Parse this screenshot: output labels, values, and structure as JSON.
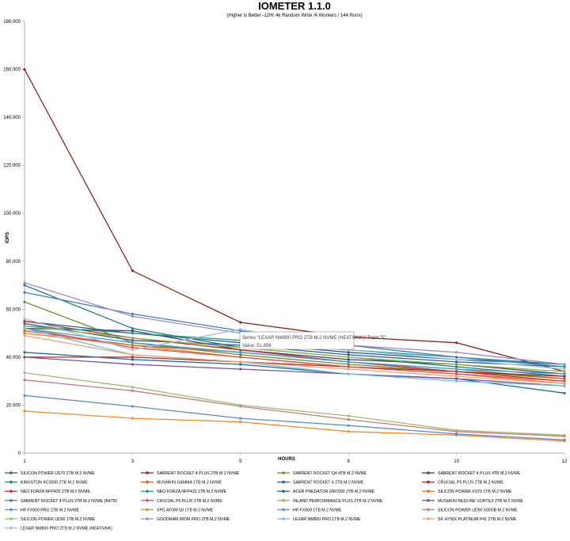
{
  "chart_data": {
    "type": "line",
    "title": "IOMETER 1.1.0",
    "subtitle": "(Higher is Better -12Hr 4k Random Write /4 Workers / 144 Runs)",
    "xlabel": "HOURS",
    "ylabel": "IOPS",
    "x": [
      "1",
      "3",
      "5",
      "8",
      "10",
      "12"
    ],
    "ylim": [
      0,
      180000
    ],
    "yticks": [
      "0",
      "20.000",
      "40.000",
      "60.000",
      "80.000",
      "100.000",
      "120.000",
      "140.000",
      "160.000",
      "180.000"
    ],
    "grid": false,
    "legend_position": "bottom",
    "tooltip": {
      "line1": "Series \"LEXAR NM800 PRO 2TB M.2 NVME (HEATSINK)\" Point \"5\"",
      "line2": "Value: 51.656"
    },
    "series": [
      {
        "name": "SILICON POWER US70 2TB M.2 NVME",
        "color": "#2e5e8e",
        "values": [
          55000,
          50000,
          46000,
          42000,
          39000,
          37000
        ]
      },
      {
        "name": "SABRENT ROCKET 4 PLUS 2TB M.2 NVME",
        "color": "#8b2525",
        "values": [
          160000,
          76000,
          54500,
          48500,
          46000,
          34000
        ]
      },
      {
        "name": "SABRENT ROCKET Q4 4TB M.2 NVME",
        "color": "#6e8a2e",
        "values": [
          63000,
          46000,
          41000,
          37000,
          34000,
          31000
        ]
      },
      {
        "name": "SABRENT ROCKET 4 PLUS 4TB M.2 NVME",
        "color": "#4b3a6e",
        "values": [
          52000,
          51000,
          43000,
          39000,
          37000,
          33000
        ]
      },
      {
        "name": "KINGSTON KC3000 2TB M.2 NVME",
        "color": "#1f7a8c",
        "values": [
          70000,
          52000,
          44000,
          40000,
          36000,
          32000
        ]
      },
      {
        "name": "MUSHKIN GAMMA 1TB M.2 NVME",
        "color": "#c0651a",
        "values": [
          51000,
          45000,
          42000,
          38000,
          35000,
          31000
        ]
      },
      {
        "name": "SABRENT ROCKET 4 2TB M.2 NVME",
        "color": "#2f5f9f",
        "values": [
          54000,
          47000,
          45000,
          41000,
          38000,
          36000
        ]
      },
      {
        "name": "CRUCIAL P5 PLUS 2TB M.2 NVME",
        "color": "#a02a2a",
        "values": [
          40000,
          40000,
          38000,
          36000,
          34000,
          32000
        ]
      },
      {
        "name": "NEO FORZA NFP425 2TB M.2 NVME",
        "color": "#c0392b",
        "values": [
          55000,
          48000,
          43000,
          38000,
          34000,
          30000
        ]
      },
      {
        "name": "NEO FORZA NFP425 1TB M.2 NVME",
        "color": "#16a085",
        "values": [
          53000,
          50000,
          47000,
          43000,
          40000,
          36000
        ]
      },
      {
        "name": "ACER PREDATOR GM7000 2TB M.2 NVME",
        "color": "#1a6e9a",
        "values": [
          42000,
          39000,
          37000,
          33000,
          31000,
          25000
        ]
      },
      {
        "name": "SILICON POWER XS70 1TB M.2 NVME",
        "color": "#e07b1a",
        "values": [
          50000,
          45000,
          40000,
          36000,
          33000,
          29000
        ]
      },
      {
        "name": "SABRENT ROCKET 4 PLUS 2TB M.2 NVME (B47R)",
        "color": "#3d7ebf",
        "values": [
          67000,
          58000,
          51000,
          45000,
          40000,
          37000
        ]
      },
      {
        "name": "CRUCIAL P5 PLUS 1TB M.2 NVME",
        "color": "#e05050",
        "values": [
          52000,
          44000,
          40000,
          36000,
          33000,
          30000
        ]
      },
      {
        "name": "INLAND PERFORMANCE PLUS 2TB M.2 NVME",
        "color": "#8fb83a",
        "values": [
          53000,
          48000,
          44000,
          40000,
          37000,
          34000
        ]
      },
      {
        "name": "MUSHKIN REDLINE VORTEX 2TB M.2 NVME",
        "color": "#7d4e9e",
        "values": [
          40000,
          37000,
          35000,
          33000,
          31000,
          28000
        ]
      },
      {
        "name": "HP FX900 PRO 2TB M.2 NVME",
        "color": "#3aa0d8",
        "values": [
          52000,
          46000,
          42000,
          38000,
          35000,
          33000
        ]
      },
      {
        "name": "XPG ATOM 50 1TB M.2 NVME",
        "color": "#f08a24",
        "values": [
          17500,
          14500,
          13000,
          9000,
          7500,
          5000
        ]
      },
      {
        "name": "HP FX900 1TB M.2 NVME",
        "color": "#5b8fd6",
        "values": [
          24000,
          19500,
          14500,
          11500,
          8000,
          5500
        ]
      },
      {
        "name": "SILICON POWER UD90 500GB M.2 NVME",
        "color": "#c87a7a",
        "values": [
          30500,
          26000,
          19500,
          14000,
          9000,
          7000
        ]
      },
      {
        "name": "SILICON POWER UD90 1TB M.2 NVME",
        "color": "#9ebc6a",
        "values": [
          33500,
          27500,
          20000,
          15500,
          9500,
          7500
        ]
      },
      {
        "name": "GOODRAM IRDM PRO 2TB M.2 NVME",
        "color": "#9a8cc8",
        "values": [
          71000,
          57000,
          50000,
          45000,
          42000,
          37000
        ]
      },
      {
        "name": "LEXAR NM800 PRO 1TB M.2 NVME",
        "color": "#6fc0e0",
        "values": [
          52000,
          41000,
          38000,
          33000,
          30000,
          28000
        ]
      },
      {
        "name": "SK HYNIX PLATINUM P41 2TB M.2 NVME",
        "color": "#f0a070",
        "values": [
          49000,
          41000,
          38000,
          35000,
          32000,
          29000
        ]
      },
      {
        "name": "LEXAR NM800 PRO 2TB M.2 NVME (HEATSINK)",
        "color": "#a8b8e8",
        "values": [
          56000,
          43000,
          51656,
          43000,
          39000,
          35000
        ]
      }
    ]
  }
}
